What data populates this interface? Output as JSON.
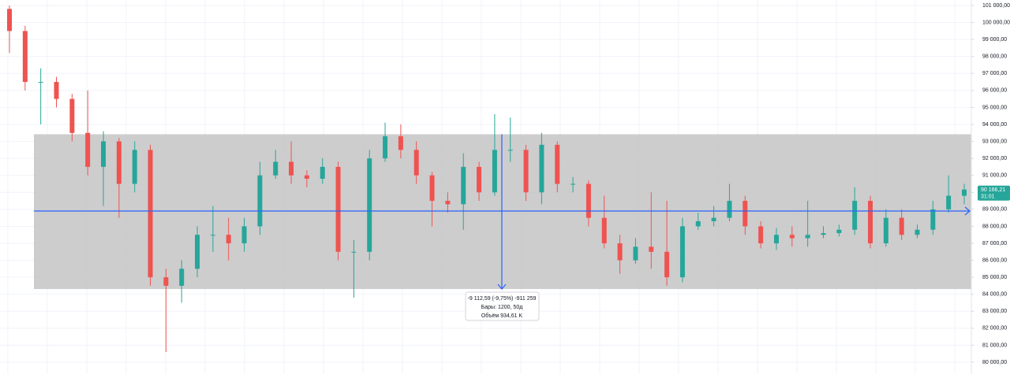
{
  "chart_data": {
    "type": "candlestick",
    "ylim": [
      79305,
      101325
    ],
    "yticks": [
      {
        "value": 80000,
        "label": "80 000,00"
      },
      {
        "value": 81000,
        "label": "81 000,00"
      },
      {
        "value": 82000,
        "label": "82 000,00"
      },
      {
        "value": 83000,
        "label": "83 000,00"
      },
      {
        "value": 84000,
        "label": "84 000,00"
      },
      {
        "value": 85000,
        "label": "85 000,00"
      },
      {
        "value": 86000,
        "label": "86 000,00"
      },
      {
        "value": 87000,
        "label": "87 000,00"
      },
      {
        "value": 88000,
        "label": "88 000,00"
      },
      {
        "value": 89000,
        "label": "89 000,00"
      },
      {
        "value": 90000,
        "label": "90 000,00"
      },
      {
        "value": 91000,
        "label": "91 000,00"
      },
      {
        "value": 92000,
        "label": "92 000,00"
      },
      {
        "value": 93000,
        "label": "93 000,00"
      },
      {
        "value": 94000,
        "label": "94 000,00"
      },
      {
        "value": 95000,
        "label": "95 000,00"
      },
      {
        "value": 96000,
        "label": "96 000,00"
      },
      {
        "value": 97000,
        "label": "97 000,00"
      },
      {
        "value": 98000,
        "label": "98 000,00"
      },
      {
        "value": 99000,
        "label": "99 000,00"
      },
      {
        "value": 100000,
        "label": "100 000,00"
      },
      {
        "value": 101000,
        "label": "101 000,00"
      }
    ],
    "grid": true,
    "up_color": "#26a69a",
    "down_color": "#ef5350",
    "open": [
      100800,
      99500,
      96500,
      96500,
      95500,
      93500,
      91500,
      93000,
      90500,
      92500,
      85000,
      84500,
      85500,
      87500,
      87500,
      87000,
      88000,
      91000,
      91800,
      91000,
      90800,
      91500,
      86500,
      86500,
      92000,
      93300,
      92500,
      91000,
      89500,
      89300,
      91500,
      90000,
      92500,
      92500,
      90000,
      92800,
      90500,
      90500,
      88500,
      87000,
      86000,
      86800,
      86500,
      85000,
      88000,
      88300,
      88500,
      89500,
      88000,
      87000,
      87500,
      87300,
      87500,
      87600,
      87800,
      89500,
      87000,
      88500,
      87500,
      87800,
      89000,
      89800
    ],
    "high": [
      101000,
      99800,
      97300,
      96800,
      95800,
      96000,
      93600,
      93200,
      93000,
      92800,
      85500,
      86000,
      88000,
      89200,
      88500,
      88500,
      91800,
      92500,
      93000,
      91300,
      92000,
      91800,
      87200,
      92500,
      94100,
      94000,
      93000,
      91200,
      90000,
      92300,
      91800,
      94600,
      94400,
      92800,
      93500,
      93000,
      90900,
      90700,
      89800,
      87500,
      87300,
      90000,
      89500,
      88500,
      88800,
      89200,
      90500,
      89800,
      88300,
      87900,
      88000,
      89500,
      88000,
      88100,
      90300,
      89800,
      89000,
      89000,
      88100,
      89500,
      91000,
      90500
    ],
    "low": [
      98200,
      96000,
      94000,
      95000,
      93000,
      91000,
      89200,
      88500,
      90000,
      84500,
      80600,
      83500,
      85000,
      86500,
      86000,
      86500,
      87500,
      90800,
      90500,
      90300,
      90500,
      86000,
      83800,
      86000,
      91800,
      92000,
      90500,
      88000,
      88800,
      87800,
      89500,
      89800,
      91800,
      89500,
      89300,
      90000,
      90000,
      88000,
      86700,
      85200,
      85800,
      85500,
      84500,
      84700,
      87800,
      88000,
      88300,
      87500,
      86700,
      86600,
      86800,
      86800,
      87300,
      87400,
      87500,
      86700,
      86800,
      87200,
      87300,
      87500,
      88800,
      89300
    ],
    "close": [
      99500,
      96500,
      96500,
      95500,
      93500,
      91500,
      93000,
      90500,
      92500,
      85000,
      84500,
      85500,
      87500,
      87500,
      87000,
      88000,
      91000,
      91800,
      91000,
      90800,
      91500,
      86500,
      86500,
      92000,
      93300,
      92500,
      91000,
      89500,
      89300,
      91500,
      90000,
      92500,
      92500,
      90000,
      92800,
      90500,
      90500,
      88500,
      87000,
      86000,
      86800,
      86500,
      85000,
      88000,
      88300,
      88500,
      89500,
      88000,
      87000,
      87500,
      87300,
      87500,
      87600,
      87800,
      89500,
      87000,
      88500,
      87500,
      87800,
      89000,
      89800,
      90166.21
    ],
    "range": {
      "top": 93420,
      "bottom": 84307,
      "color": "#c4c4c4"
    },
    "hline": {
      "value": 88900,
      "color": "#2962ff"
    },
    "measure_labels": [
      "-9 112,59 (-9,75%) -911 259",
      "Бары: 1200, 50д",
      "Объём 934,61 K"
    ],
    "last_price": {
      "value": 90166.21,
      "label": "90 166,21"
    },
    "countdown": "31:01"
  }
}
